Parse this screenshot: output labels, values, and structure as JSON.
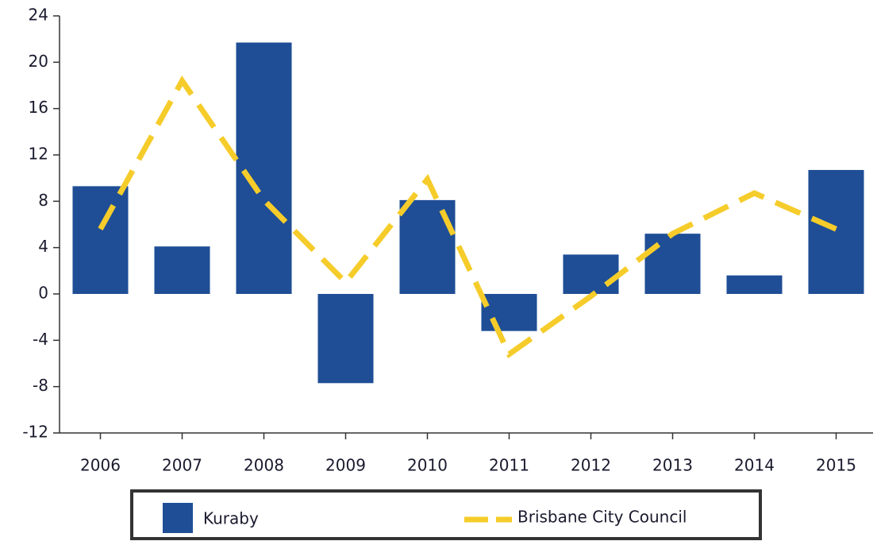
{
  "chart_data": {
    "type": "bar_line",
    "categories": [
      "2006",
      "2007",
      "2008",
      "2009",
      "2010",
      "2011",
      "2012",
      "2013",
      "2014",
      "2015"
    ],
    "series": [
      {
        "name": "Kuraby",
        "type": "bar",
        "color": "#1f4e96",
        "values": [
          9.3,
          4.1,
          21.7,
          -7.7,
          8.1,
          -3.2,
          3.4,
          5.2,
          1.6,
          10.7
        ]
      },
      {
        "name": "Brisbane City Council",
        "type": "line",
        "dashed": true,
        "color": "#f5cc2a",
        "values": [
          5.6,
          18.4,
          8.1,
          1.0,
          9.9,
          -5.2,
          -0.2,
          5.2,
          8.7,
          5.6
        ]
      }
    ],
    "ylim": [
      -12,
      24
    ],
    "yticks": [
      -12,
      -8,
      -4,
      0,
      4,
      8,
      12,
      16,
      20,
      24
    ]
  }
}
